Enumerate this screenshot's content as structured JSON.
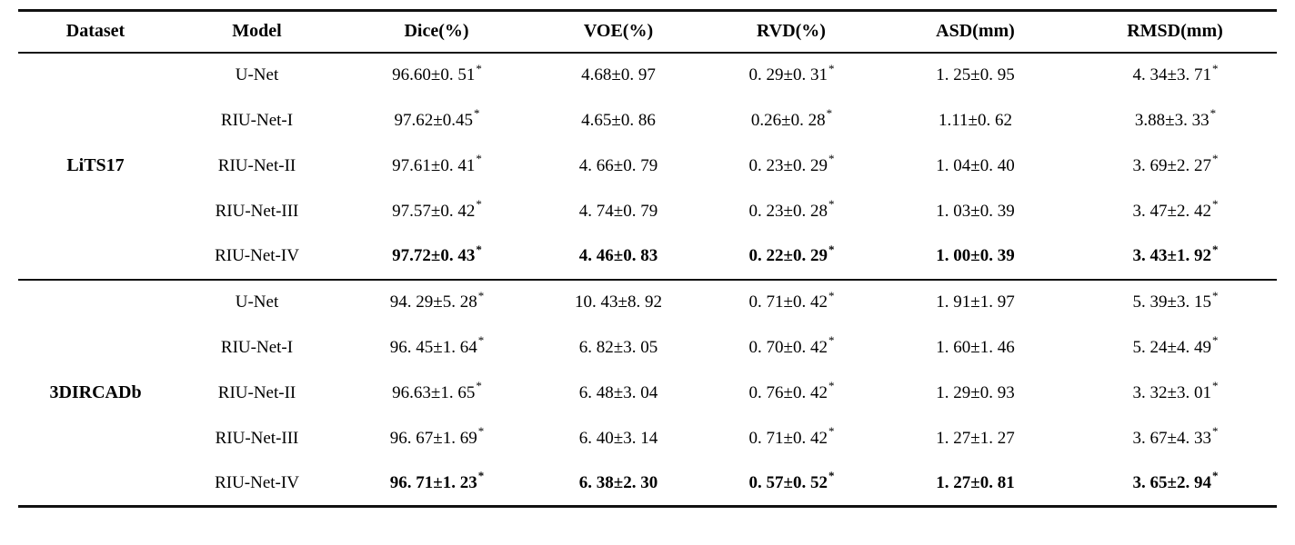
{
  "table": {
    "columns": [
      "Dataset",
      "Model",
      "Dice(%)",
      "VOE(%)",
      "RVD(%)",
      "ASD(mm)",
      "RMSD(mm)"
    ],
    "groups": [
      {
        "dataset": "LiTS17",
        "rows": [
          {
            "model": "U-Net",
            "bold": false,
            "metrics": [
              {
                "v": "96.60±0. 51",
                "star": true
              },
              {
                "v": "4.68±0. 97",
                "star": false
              },
              {
                "v": "0. 29±0. 31",
                "star": true
              },
              {
                "v": "1. 25±0. 95",
                "star": false
              },
              {
                "v": "4. 34±3. 71",
                "star": true
              }
            ]
          },
          {
            "model": "RIU-Net-I",
            "bold": false,
            "metrics": [
              {
                "v": "97.62±0.45",
                "star": true
              },
              {
                "v": "4.65±0. 86",
                "star": false
              },
              {
                "v": "0.26±0. 28",
                "star": true
              },
              {
                "v": "1.11±0. 62",
                "star": false
              },
              {
                "v": "3.88±3. 33",
                "star": true
              }
            ]
          },
          {
            "model": "RIU-Net-II",
            "bold": false,
            "metrics": [
              {
                "v": "97.61±0. 41",
                "star": true
              },
              {
                "v": "4. 66±0. 79",
                "star": false
              },
              {
                "v": "0. 23±0. 29",
                "star": true
              },
              {
                "v": "1. 04±0. 40",
                "star": false
              },
              {
                "v": "3. 69±2. 27",
                "star": true
              }
            ]
          },
          {
            "model": "RIU-Net-III",
            "bold": false,
            "metrics": [
              {
                "v": "97.57±0. 42",
                "star": true
              },
              {
                "v": "4. 74±0. 79",
                "star": false
              },
              {
                "v": "0. 23±0. 28",
                "star": true
              },
              {
                "v": "1. 03±0. 39",
                "star": false
              },
              {
                "v": "3. 47±2. 42",
                "star": true
              }
            ]
          },
          {
            "model": "RIU-Net-IV",
            "bold": true,
            "metrics": [
              {
                "v": "97.72±0. 43",
                "star": true
              },
              {
                "v": "4. 46±0. 83",
                "star": false
              },
              {
                "v": "0. 22±0. 29",
                "star": true
              },
              {
                "v": "1. 00±0. 39",
                "star": false
              },
              {
                "v": "3. 43±1. 92",
                "star": true
              }
            ]
          }
        ]
      },
      {
        "dataset": "3DIRCADb",
        "rows": [
          {
            "model": "U-Net",
            "bold": false,
            "metrics": [
              {
                "v": "94. 29±5. 28",
                "star": true
              },
              {
                "v": "10. 43±8. 92",
                "star": false
              },
              {
                "v": "0. 71±0. 42",
                "star": true
              },
              {
                "v": "1. 91±1. 97",
                "star": false
              },
              {
                "v": "5. 39±3. 15",
                "star": true
              }
            ]
          },
          {
            "model": "RIU-Net-I",
            "bold": false,
            "metrics": [
              {
                "v": "96. 45±1. 64",
                "star": true
              },
              {
                "v": "6. 82±3. 05",
                "star": false
              },
              {
                "v": "0. 70±0. 42",
                "star": true
              },
              {
                "v": "1. 60±1. 46",
                "star": false
              },
              {
                "v": "5. 24±4. 49",
                "star": true
              }
            ]
          },
          {
            "model": "RIU-Net-II",
            "bold": false,
            "metrics": [
              {
                "v": "96.63±1. 65",
                "star": true
              },
              {
                "v": "6. 48±3. 04",
                "star": false
              },
              {
                "v": "0. 76±0. 42",
                "star": true
              },
              {
                "v": "1. 29±0. 93",
                "star": false
              },
              {
                "v": "3. 32±3. 01",
                "star": true
              }
            ]
          },
          {
            "model": "RIU-Net-III",
            "bold": false,
            "metrics": [
              {
                "v": "96. 67±1. 69",
                "star": true
              },
              {
                "v": "6. 40±3. 14",
                "star": false
              },
              {
                "v": "0. 71±0. 42",
                "star": true
              },
              {
                "v": "1. 27±1. 27",
                "star": false
              },
              {
                "v": "3. 67±4. 33",
                "star": true
              }
            ]
          },
          {
            "model": "RIU-Net-IV",
            "bold": true,
            "metrics": [
              {
                "v": "96. 71±1. 23",
                "star": true
              },
              {
                "v": "6. 38±2. 30",
                "star": false
              },
              {
                "v": "0. 57±0. 52",
                "star": true
              },
              {
                "v": "1. 27±0. 81",
                "star": false
              },
              {
                "v": "3. 65±2. 94",
                "star": true
              }
            ]
          }
        ]
      }
    ]
  }
}
